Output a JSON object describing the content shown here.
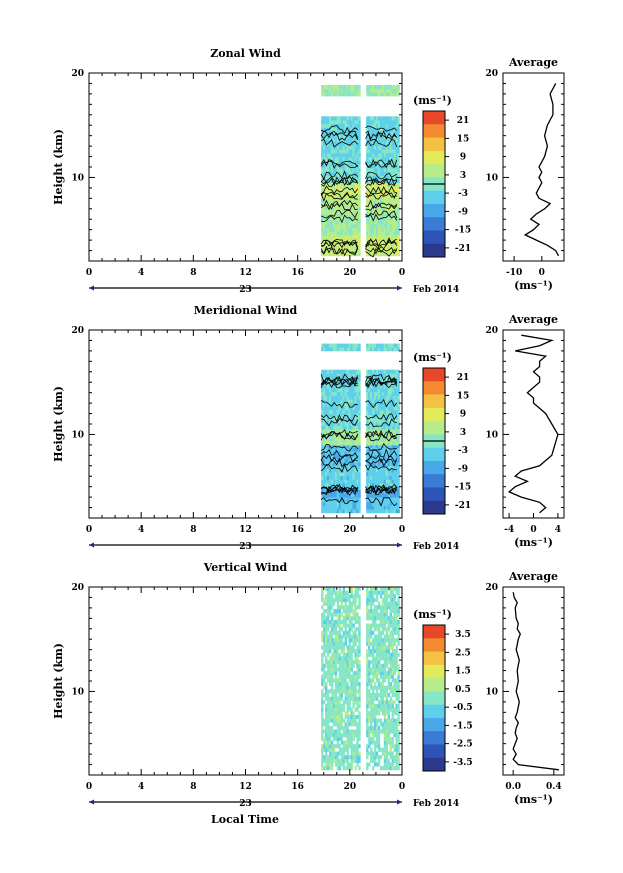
{
  "colors": {
    "scale": [
      "#2b3a8c",
      "#2f54b8",
      "#3a7bd6",
      "#4aa8e8",
      "#5fd0ec",
      "#86e6c6",
      "#b6ec8a",
      "#e0ea5a",
      "#f5c142",
      "#f48a30",
      "#e8482a"
    ],
    "frame": "#000000",
    "contour": "#000000"
  },
  "common": {
    "xlabel": "Local Time",
    "date_label": "Feb 2014",
    "day_label": "23",
    "x_ticks": [
      "0",
      "4",
      "8",
      "12",
      "16",
      "20",
      "0"
    ],
    "y_ticks": [
      "10",
      "20"
    ],
    "ylabel": "Height (km)",
    "unit_label": "(ms⁻¹)",
    "avg_title": "Average"
  },
  "chart_data": [
    {
      "type": "heatmap",
      "title": "Zonal Wind",
      "ylabel": "Height (km)",
      "xlim": [
        0,
        24
      ],
      "ylim": [
        2,
        20
      ],
      "data_x_range": [
        17.8,
        23.7
      ],
      "data_gap_x": [
        20.7,
        21.1
      ],
      "data_y_range": [
        2.5,
        18.8
      ],
      "colorbar_ticks": [
        "21",
        "15",
        "9",
        "3",
        "-3",
        "-9",
        "-15",
        "-21"
      ],
      "colorbar_range": [
        -24,
        24
      ],
      "bands": [
        {
          "y": [
            2.5,
            4.5
          ],
          "v": 6
        },
        {
          "y": [
            4.5,
            6.5
          ],
          "v": 2
        },
        {
          "y": [
            6.5,
            8.0
          ],
          "v": 4
        },
        {
          "y": [
            8.0,
            9.5
          ],
          "v": 6
        },
        {
          "y": [
            9.5,
            12.0
          ],
          "v": -2
        },
        {
          "y": [
            12.0,
            15.5
          ],
          "v": -3
        },
        {
          "y": [
            17.8,
            18.8
          ],
          "v": 2
        }
      ],
      "profile": {
        "title": "Average",
        "x_ticks": [
          "-10",
          "0"
        ],
        "xlim": [
          -14,
          8
        ],
        "x": [
          6,
          5,
          2,
          -2,
          -6,
          -3,
          -1,
          -4,
          -2,
          1,
          3,
          -1,
          -2,
          -1,
          0,
          -1,
          0,
          -1,
          0,
          1,
          2,
          1,
          2,
          3,
          4,
          4,
          3,
          4,
          5
        ],
        "y": [
          2.5,
          3,
          3.5,
          4,
          4.5,
          5,
          5.5,
          6,
          6.5,
          7,
          7.5,
          8,
          8.5,
          9,
          9.5,
          10,
          10.5,
          11,
          11.5,
          12,
          13,
          14,
          15,
          15.5,
          16,
          17,
          18,
          18.5,
          19
        ]
      }
    },
    {
      "type": "heatmap",
      "title": "Meridional Wind",
      "ylabel": "Height (km)",
      "xlim": [
        0,
        24
      ],
      "ylim": [
        2,
        20
      ],
      "data_x_range": [
        17.8,
        23.7
      ],
      "data_gap_x": [
        20.7,
        21.1
      ],
      "data_y_range": [
        2.5,
        18.5
      ],
      "colorbar_ticks": [
        "21",
        "15",
        "9",
        "3",
        "-3",
        "-9",
        "-15",
        "-21"
      ],
      "colorbar_range": [
        -24,
        24
      ],
      "bands": [
        {
          "y": [
            2.5,
            4.0
          ],
          "v": -5
        },
        {
          "y": [
            4.0,
            5.0
          ],
          "v": -8
        },
        {
          "y": [
            5.0,
            7.0
          ],
          "v": -4
        },
        {
          "y": [
            7.0,
            9.0
          ],
          "v": -6
        },
        {
          "y": [
            9.0,
            10.5
          ],
          "v": 3
        },
        {
          "y": [
            10.5,
            12.0
          ],
          "v": -2
        },
        {
          "y": [
            12.0,
            16.0
          ],
          "v": -3
        },
        {
          "y": [
            18.0,
            18.5
          ],
          "v": -2
        }
      ],
      "profile": {
        "title": "Average",
        "x_ticks": [
          "-4",
          "0",
          "4"
        ],
        "xlim": [
          -5,
          5
        ],
        "x": [
          1,
          2,
          1,
          -2,
          -4,
          -3,
          -1,
          -3,
          -2,
          1,
          3,
          4,
          3,
          2,
          1,
          0,
          0,
          -1,
          0,
          1,
          1,
          0,
          1,
          1,
          2,
          -3,
          1,
          3,
          -2
        ],
        "y": [
          2.5,
          3,
          3.5,
          4,
          4.5,
          5,
          5.5,
          6,
          6.5,
          7,
          8,
          10,
          11,
          12,
          12.5,
          13,
          13.5,
          14,
          14.5,
          15,
          15.5,
          16,
          16.5,
          17,
          17.5,
          18,
          18.5,
          19,
          19.5
        ]
      }
    },
    {
      "type": "heatmap",
      "title": "Vertical Wind",
      "ylabel": "Height (km)",
      "xlabel": "Local Time",
      "xlim": [
        0,
        24
      ],
      "ylim": [
        2,
        20
      ],
      "data_x_range": [
        17.8,
        23.7
      ],
      "data_gap_x": [
        20.7,
        21.1
      ],
      "data_y_range": [
        2.5,
        20
      ],
      "colorbar_ticks": [
        "3.5",
        "2.5",
        "1.5",
        "0.5",
        "-0.5",
        "-1.5",
        "-2.5",
        "-3.5"
      ],
      "colorbar_range": [
        -4,
        4
      ],
      "bands": [
        {
          "y": [
            2.5,
            20
          ],
          "v": 0
        }
      ],
      "profile": {
        "title": "Average",
        "x_ticks": [
          "0.0",
          "0.4"
        ],
        "xlim": [
          -0.1,
          0.5
        ],
        "x": [
          0.45,
          0.05,
          0.0,
          0.03,
          0.0,
          0.02,
          0.04,
          0.02,
          0.03,
          0.05,
          0.02,
          0.04,
          0.06,
          0.03,
          0.05,
          0.04,
          0.06,
          0.03,
          0.05,
          0.07,
          0.04,
          0.05,
          0.03,
          0.02,
          0.04,
          0.01,
          0.0
        ],
        "y": [
          2.5,
          3,
          3.5,
          4,
          4.5,
          5,
          5.5,
          6,
          6.5,
          7,
          7.5,
          8,
          9,
          10,
          11,
          12,
          13,
          14,
          15,
          15.5,
          16,
          16.5,
          17,
          18,
          18.5,
          19,
          19.5
        ]
      }
    }
  ]
}
